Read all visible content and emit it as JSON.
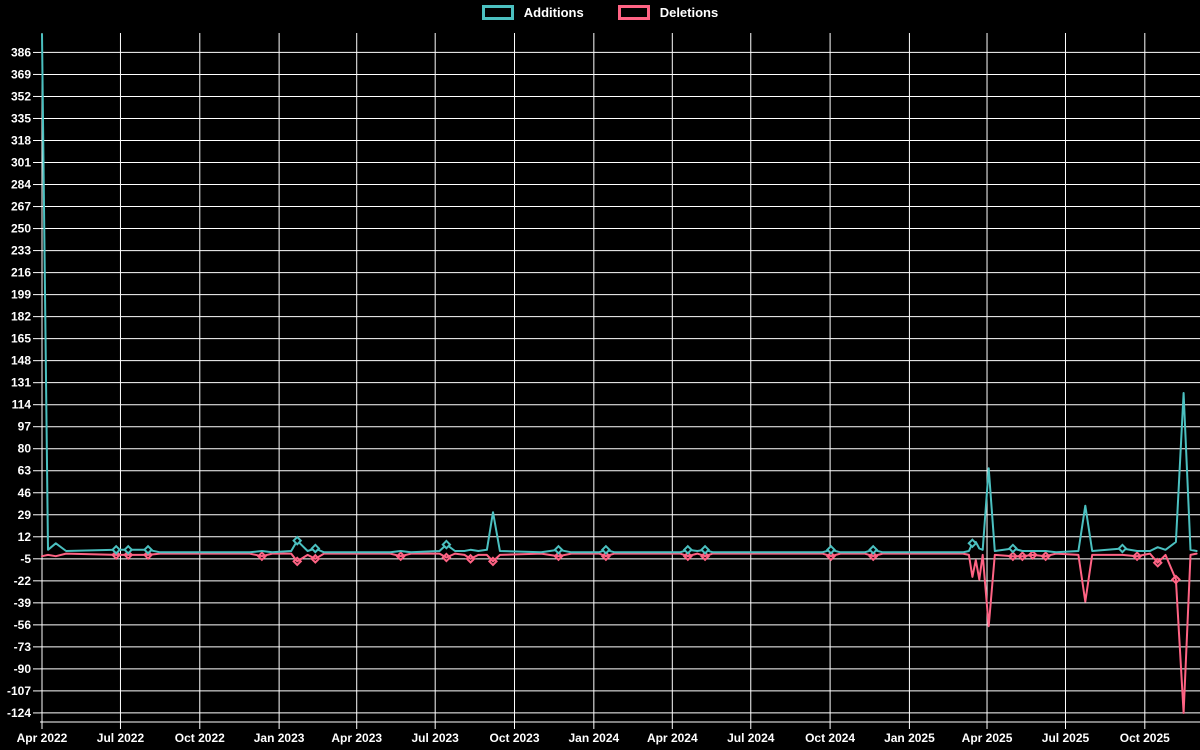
{
  "page": {
    "background": "#000000",
    "text_color": "#ffffff",
    "grid_color": "#ffffff"
  },
  "chart_data": {
    "type": "line",
    "title": "",
    "xlabel": "",
    "ylabel": "",
    "x_type": "time",
    "grid": true,
    "legend_position": "top",
    "x_range": [
      "2022-04-01",
      "2025-12-04"
    ],
    "y_range": [
      -131,
      401
    ],
    "yticks": [
      386,
      369,
      352,
      335,
      318,
      301,
      284,
      267,
      250,
      233,
      216,
      199,
      182,
      165,
      148,
      131,
      114,
      97,
      80,
      63,
      46,
      29,
      12,
      -5,
      -22,
      -39,
      -56,
      -73,
      -90,
      -107,
      -124
    ],
    "xticks": [
      {
        "date": "2022-04-01",
        "label": "Apr 2022"
      },
      {
        "date": "2022-07-01",
        "label": "Jul 2022"
      },
      {
        "date": "2022-10-01",
        "label": "Oct 2022"
      },
      {
        "date": "2023-01-01",
        "label": "Jan 2023"
      },
      {
        "date": "2023-04-01",
        "label": "Apr 2023"
      },
      {
        "date": "2023-07-01",
        "label": "Jul 2023"
      },
      {
        "date": "2023-10-01",
        "label": "Oct 2023"
      },
      {
        "date": "2024-01-01",
        "label": "Jan 2024"
      },
      {
        "date": "2024-04-01",
        "label": "Apr 2024"
      },
      {
        "date": "2024-07-01",
        "label": "Jul 2024"
      },
      {
        "date": "2024-10-01",
        "label": "Oct 2024"
      },
      {
        "date": "2025-01-01",
        "label": "Jan 2025"
      },
      {
        "date": "2025-04-01",
        "label": "Apr 2025"
      },
      {
        "date": "2025-07-01",
        "label": "Jul 2025"
      },
      {
        "date": "2025-10-01",
        "label": "Oct 2025"
      }
    ],
    "series": [
      {
        "name": "Additions",
        "color": "#4bc0c0",
        "marker": "diamond"
      },
      {
        "name": "Deletions",
        "color": "#ff6384",
        "marker": "diamond"
      }
    ],
    "points": [
      {
        "t": "2022-04-01",
        "a": 400,
        "d": -3,
        "ma": false,
        "md": false
      },
      {
        "t": "2022-04-08",
        "a": 2,
        "d": -2,
        "ma": false,
        "md": false
      },
      {
        "t": "2022-04-17",
        "a": 7,
        "d": -3,
        "ma": false,
        "md": false
      },
      {
        "t": "2022-04-29",
        "a": 1,
        "d": -1,
        "ma": false,
        "md": false
      },
      {
        "t": "2022-06-26",
        "a": 2,
        "d": -2,
        "ma": true,
        "md": true
      },
      {
        "t": "2022-07-10",
        "a": 2,
        "d": -2,
        "ma": true,
        "md": true
      },
      {
        "t": "2022-08-02",
        "a": 2,
        "d": -2,
        "ma": true,
        "md": true
      },
      {
        "t": "2022-08-16",
        "a": 0,
        "d": -1,
        "ma": false,
        "md": false
      },
      {
        "t": "2022-11-28",
        "a": 0,
        "d": -1,
        "ma": false,
        "md": false
      },
      {
        "t": "2022-12-12",
        "a": 1,
        "d": -3,
        "ma": false,
        "md": true
      },
      {
        "t": "2022-12-24",
        "a": 0,
        "d": -1,
        "ma": false,
        "md": false
      },
      {
        "t": "2023-01-15",
        "a": 1,
        "d": -1,
        "ma": false,
        "md": false
      },
      {
        "t": "2023-01-22",
        "a": 9,
        "d": -7,
        "ma": true,
        "md": true
      },
      {
        "t": "2023-02-03",
        "a": 1,
        "d": -2,
        "ma": false,
        "md": false
      },
      {
        "t": "2023-02-12",
        "a": 3,
        "d": -5,
        "ma": true,
        "md": true
      },
      {
        "t": "2023-02-22",
        "a": 0,
        "d": -1,
        "ma": false,
        "md": false
      },
      {
        "t": "2023-05-10",
        "a": 0,
        "d": -1,
        "ma": false,
        "md": false
      },
      {
        "t": "2023-05-22",
        "a": 1,
        "d": -3,
        "ma": false,
        "md": true
      },
      {
        "t": "2023-06-03",
        "a": 0,
        "d": -1,
        "ma": false,
        "md": false
      },
      {
        "t": "2023-07-06",
        "a": 1,
        "d": -1,
        "ma": false,
        "md": false
      },
      {
        "t": "2023-07-14",
        "a": 6,
        "d": -4,
        "ma": true,
        "md": true
      },
      {
        "t": "2023-07-24",
        "a": 1,
        "d": -1,
        "ma": false,
        "md": false
      },
      {
        "t": "2023-08-04",
        "a": 1,
        "d": -2,
        "ma": false,
        "md": false
      },
      {
        "t": "2023-08-11",
        "a": 2,
        "d": -5,
        "ma": false,
        "md": true
      },
      {
        "t": "2023-08-20",
        "a": 1,
        "d": -2,
        "ma": false,
        "md": false
      },
      {
        "t": "2023-08-30",
        "a": 2,
        "d": -2,
        "ma": false,
        "md": false
      },
      {
        "t": "2023-09-06",
        "a": 31,
        "d": -7,
        "ma": false,
        "md": true
      },
      {
        "t": "2023-09-14",
        "a": 1,
        "d": -2,
        "ma": false,
        "md": false
      },
      {
        "t": "2023-11-01",
        "a": 0,
        "d": -1,
        "ma": false,
        "md": false
      },
      {
        "t": "2023-11-21",
        "a": 2,
        "d": -3,
        "ma": true,
        "md": true
      },
      {
        "t": "2023-12-06",
        "a": 0,
        "d": -1,
        "ma": false,
        "md": false
      },
      {
        "t": "2024-01-07",
        "a": 0,
        "d": -1,
        "ma": false,
        "md": false
      },
      {
        "t": "2024-01-15",
        "a": 2,
        "d": -3,
        "ma": true,
        "md": true
      },
      {
        "t": "2024-01-25",
        "a": 0,
        "d": -1,
        "ma": false,
        "md": false
      },
      {
        "t": "2024-04-10",
        "a": 0,
        "d": -1,
        "ma": false,
        "md": false
      },
      {
        "t": "2024-04-19",
        "a": 2,
        "d": -3,
        "ma": true,
        "md": true
      },
      {
        "t": "2024-04-30",
        "a": 1,
        "d": -1,
        "ma": false,
        "md": false
      },
      {
        "t": "2024-05-09",
        "a": 2,
        "d": -3,
        "ma": true,
        "md": true
      },
      {
        "t": "2024-05-18",
        "a": 0,
        "d": -1,
        "ma": false,
        "md": false
      },
      {
        "t": "2024-09-22",
        "a": 0,
        "d": -1,
        "ma": false,
        "md": false
      },
      {
        "t": "2024-10-02",
        "a": 2,
        "d": -3,
        "ma": true,
        "md": true
      },
      {
        "t": "2024-10-13",
        "a": 0,
        "d": -1,
        "ma": false,
        "md": false
      },
      {
        "t": "2024-11-10",
        "a": 0,
        "d": -1,
        "ma": false,
        "md": false
      },
      {
        "t": "2024-11-20",
        "a": 2,
        "d": -3,
        "ma": true,
        "md": true
      },
      {
        "t": "2024-12-01",
        "a": 0,
        "d": -1,
        "ma": false,
        "md": false
      },
      {
        "t": "2025-03-04",
        "a": 0,
        "d": -1,
        "ma": false,
        "md": false
      },
      {
        "t": "2025-03-11",
        "a": 1,
        "d": -2,
        "ma": false,
        "md": false
      },
      {
        "t": "2025-03-15",
        "a": 7,
        "d": -19,
        "ma": true,
        "md": false
      },
      {
        "t": "2025-03-19",
        "a": 8,
        "d": -6,
        "ma": false,
        "md": false
      },
      {
        "t": "2025-03-23",
        "a": 3,
        "d": -21,
        "ma": false,
        "md": false
      },
      {
        "t": "2025-03-27",
        "a": 2,
        "d": -2,
        "ma": false,
        "md": false
      },
      {
        "t": "2025-04-03",
        "a": 65,
        "d": -57,
        "ma": false,
        "md": false
      },
      {
        "t": "2025-04-10",
        "a": 1,
        "d": -2,
        "ma": false,
        "md": false
      },
      {
        "t": "2025-05-01",
        "a": 3,
        "d": -3,
        "ma": true,
        "md": true
      },
      {
        "t": "2025-05-12",
        "a": 1,
        "d": -3,
        "ma": false,
        "md": true
      },
      {
        "t": "2025-05-24",
        "a": 1,
        "d": -2,
        "ma": false,
        "md": true
      },
      {
        "t": "2025-06-08",
        "a": 1,
        "d": -3,
        "ma": false,
        "md": true
      },
      {
        "t": "2025-06-20",
        "a": 0,
        "d": -1,
        "ma": false,
        "md": false
      },
      {
        "t": "2025-07-16",
        "a": 1,
        "d": -2,
        "ma": false,
        "md": false
      },
      {
        "t": "2025-07-24",
        "a": 36,
        "d": -38,
        "ma": false,
        "md": false
      },
      {
        "t": "2025-08-01",
        "a": 1,
        "d": -2,
        "ma": false,
        "md": false
      },
      {
        "t": "2025-09-05",
        "a": 3,
        "d": -2,
        "ma": true,
        "md": false
      },
      {
        "t": "2025-09-22",
        "a": 1,
        "d": -3,
        "ma": false,
        "md": true
      },
      {
        "t": "2025-10-07",
        "a": 1,
        "d": -1,
        "ma": false,
        "md": false
      },
      {
        "t": "2025-10-16",
        "a": 4,
        "d": -8,
        "ma": false,
        "md": true
      },
      {
        "t": "2025-10-25",
        "a": 2,
        "d": -2,
        "ma": false,
        "md": false
      },
      {
        "t": "2025-11-06",
        "a": 8,
        "d": -21,
        "ma": false,
        "md": true
      },
      {
        "t": "2025-11-15",
        "a": 123,
        "d": -124,
        "ma": false,
        "md": false
      },
      {
        "t": "2025-11-23",
        "a": 2,
        "d": -2,
        "ma": false,
        "md": false
      },
      {
        "t": "2025-11-30",
        "a": 1,
        "d": -1,
        "ma": false,
        "md": false
      }
    ]
  }
}
